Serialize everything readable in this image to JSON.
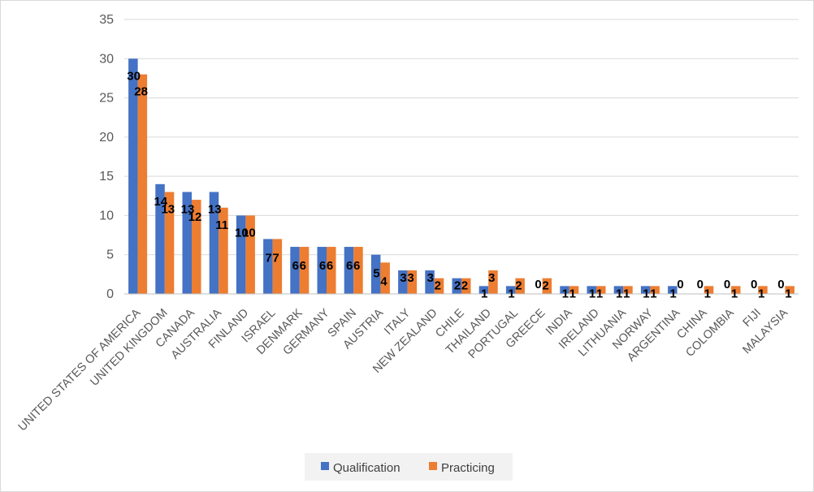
{
  "chart_data": {
    "type": "bar",
    "title": "",
    "xlabel": "",
    "ylabel": "",
    "ylim": [
      0,
      35
    ],
    "yticks": [
      0,
      5,
      10,
      15,
      20,
      25,
      30,
      35
    ],
    "grid": true,
    "legend_position": "bottom",
    "categories": [
      "UNITED STATES OF AMERICA",
      "UNITED KINGDOM",
      "CANADA",
      "AUSTRALIA",
      "FINLAND",
      "ISRAEL",
      "DENMARK",
      "GERMANY",
      "SPAIN",
      "AUSTRIA",
      "ITALY",
      "NEW ZEALAND",
      "CHILE",
      "THAILAND",
      "PORTUGAL",
      "GREECE",
      "INDIA",
      "IRELAND",
      "LITHUANIA",
      "NORWAY",
      "ARGENTINA",
      "CHINA",
      "COLOMBIA",
      "FIJI",
      "MALAYSIA"
    ],
    "series": [
      {
        "name": "Qualification",
        "color": "#4472C4",
        "values": [
          30,
          14,
          13,
          13,
          10,
          7,
          6,
          6,
          6,
          5,
          3,
          3,
          2,
          1,
          1,
          0,
          1,
          1,
          1,
          1,
          1,
          0,
          0,
          0,
          0
        ]
      },
      {
        "name": "Practicing",
        "color": "#ED7D31",
        "values": [
          28,
          13,
          12,
          11,
          10,
          7,
          6,
          6,
          6,
          4,
          3,
          2,
          2,
          3,
          2,
          2,
          1,
          1,
          1,
          1,
          0,
          1,
          1,
          1,
          1
        ]
      }
    ]
  },
  "colors": {
    "gridline": "#d9d9d9",
    "axis": "#bfbfbf",
    "background": "#ffffff"
  }
}
